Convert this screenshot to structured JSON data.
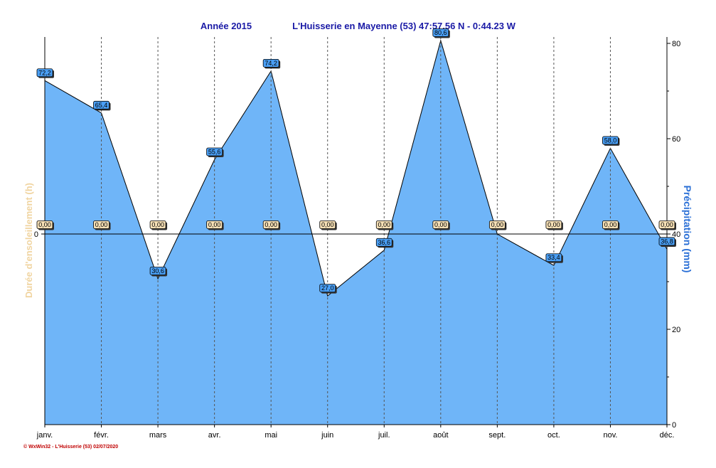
{
  "chart_data": {
    "type": "area",
    "title_left": "Année  2015",
    "title_right": "L'Huisserie en Mayenne (53) 47:57.56 N - 0:44.23 W",
    "categories": [
      "janv.",
      "févr.",
      "mars",
      "avr.",
      "mai",
      "juin",
      "juil.",
      "août",
      "sept.",
      "oct.",
      "nov.",
      "déc."
    ],
    "series": [
      {
        "name": "Précipitation  (mm)",
        "axis": "right",
        "color": "#6fb5f8",
        "values": [
          72.2,
          65.4,
          30.6,
          55.6,
          74.2,
          27.0,
          36.6,
          80.6,
          40.0,
          33.4,
          58.0,
          36.8
        ],
        "labels": [
          "72,2",
          "65,4",
          "30,6",
          "55,6",
          "74,2",
          "27,0",
          "36,6",
          "80,6",
          "",
          "33,4",
          "58,0",
          "36,8"
        ]
      },
      {
        "name": "Durée d'ensoleillement  (h)",
        "axis": "left",
        "color": "#f0d4a0",
        "values": [
          0,
          0,
          0,
          0,
          0,
          0,
          0,
          0,
          0,
          0,
          0,
          0
        ],
        "labels": [
          "0,00",
          "0,00",
          "0,00",
          "0,00",
          "0,00",
          "0,00",
          "0,00",
          "0,00",
          "0,00",
          "0,00",
          "0,00",
          "0,00"
        ]
      }
    ],
    "ylabel_left": "Durée d'ensoleillement  (h)",
    "ylabel_right": "Précipitation  (mm)",
    "left_ticks": [
      "0"
    ],
    "right_ticks": [
      "0",
      "20",
      "40",
      "60",
      "80"
    ],
    "ylim_right": [
      0,
      80
    ],
    "left_zero_at_right_value": 40,
    "grid": "vertical dashed",
    "footer": "© WxWin32 - L'Huisserie (53)  02/07/2020"
  }
}
